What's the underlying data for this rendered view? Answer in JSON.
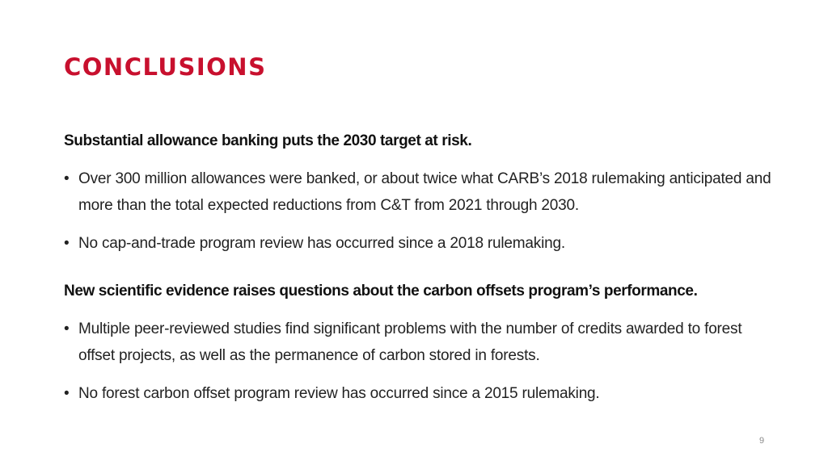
{
  "slide": {
    "title": "CONCLUSIONS",
    "title_color": "#c8102e",
    "sections": [
      {
        "heading": "Substantial allowance banking puts the 2030 target at risk.",
        "bullets": [
          "Over 300 million allowances were banked, or about twice what CARB’s 2018 rulemaking anticipated and more than the total expected reductions from C&T from 2021 through 2030.",
          "No cap-and-trade program review has occurred since a 2018 rulemaking."
        ]
      },
      {
        "heading": "New scientific evidence raises questions about the carbon offsets program’s performance.",
        "bullets": [
          "Multiple peer-reviewed studies find significant problems with the number of credits awarded to forest offset projects, as well as the permanence of carbon stored in forests.",
          "No forest carbon offset program review has occurred since a 2015 rulemaking."
        ]
      }
    ],
    "bullet_glyph": "•",
    "page_number": "9"
  }
}
